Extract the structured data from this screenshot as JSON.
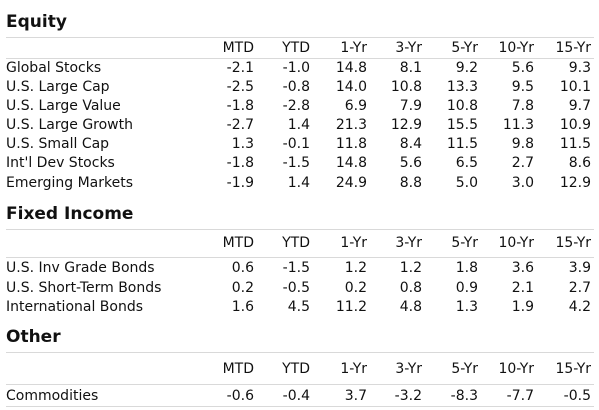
{
  "columns": [
    "MTD",
    "YTD",
    "1-Yr",
    "3-Yr",
    "5-Yr",
    "10-Yr",
    "15-Yr"
  ],
  "sections": [
    {
      "title": "Equity",
      "rows": [
        {
          "name": "Global Stocks",
          "values": [
            "-2.1",
            "-1.0",
            "14.8",
            "8.1",
            "9.2",
            "5.6",
            "9.3"
          ]
        },
        {
          "name": "U.S. Large Cap",
          "values": [
            "-2.5",
            "-0.8",
            "14.0",
            "10.8",
            "13.3",
            "9.5",
            "10.1"
          ]
        },
        {
          "name": "U.S. Large Value",
          "values": [
            "-1.8",
            "-2.8",
            "6.9",
            "7.9",
            "10.8",
            "7.8",
            "9.7"
          ]
        },
        {
          "name": "U.S. Large Growth",
          "values": [
            "-2.7",
            "1.4",
            "21.3",
            "12.9",
            "15.5",
            "11.3",
            "10.9"
          ]
        },
        {
          "name": "U.S. Small Cap",
          "values": [
            "1.3",
            "-0.1",
            "11.8",
            "8.4",
            "11.5",
            "9.8",
            "11.5"
          ]
        },
        {
          "name": "Int'l Dev Stocks",
          "values": [
            "-1.8",
            "-1.5",
            "14.8",
            "5.6",
            "6.5",
            "2.7",
            "8.6"
          ]
        },
        {
          "name": "Emerging Markets",
          "values": [
            "-1.9",
            "1.4",
            "24.9",
            "8.8",
            "5.0",
            "3.0",
            "12.9"
          ]
        }
      ]
    },
    {
      "title": "Fixed Income",
      "rows": [
        {
          "name": "U.S. Inv Grade Bonds",
          "values": [
            "0.6",
            "-1.5",
            "1.2",
            "1.2",
            "1.8",
            "3.6",
            "3.9"
          ]
        },
        {
          "name": "U.S. Short-Term Bonds",
          "values": [
            "0.2",
            "-0.5",
            "0.2",
            "0.8",
            "0.9",
            "2.1",
            "2.7"
          ]
        },
        {
          "name": "International Bonds",
          "values": [
            "1.6",
            "4.5",
            "11.2",
            "4.8",
            "1.3",
            "1.9",
            "4.2"
          ]
        }
      ]
    },
    {
      "title": "Other",
      "rows": [
        {
          "name": "Commodities",
          "values": [
            "-0.6",
            "-0.4",
            "3.7",
            "-3.2",
            "-8.3",
            "-7.7",
            "-0.5"
          ]
        }
      ]
    }
  ]
}
